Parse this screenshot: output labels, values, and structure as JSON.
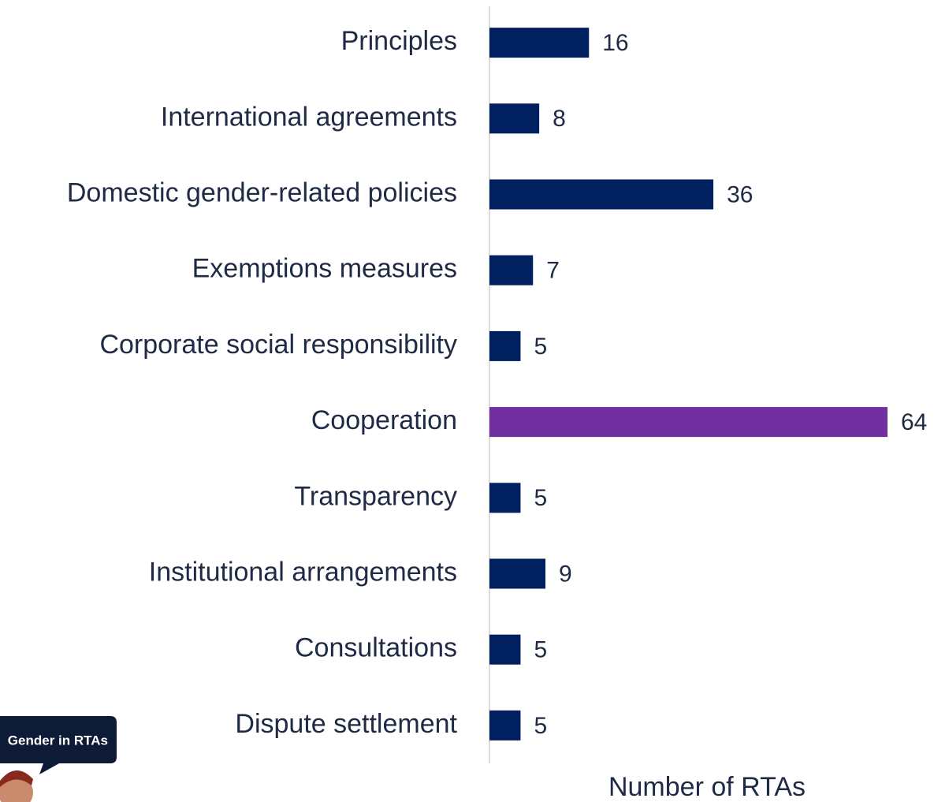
{
  "chart_data": {
    "type": "bar",
    "orientation": "horizontal",
    "categories": [
      "Principles",
      "International agreements",
      "Domestic gender-related policies",
      "Exemptions measures",
      "Corporate social responsibility",
      "Cooperation",
      "Transparency",
      "Institutional arrangements",
      "Consultations",
      "Dispute settlement"
    ],
    "values": [
      16,
      8,
      36,
      7,
      5,
      64,
      5,
      9,
      5,
      5
    ],
    "colors": [
      "#002060",
      "#002060",
      "#002060",
      "#002060",
      "#002060",
      "#7030a0",
      "#002060",
      "#002060",
      "#002060",
      "#002060"
    ],
    "xlabel": "Number of RTAs",
    "xlim": [
      0,
      64
    ],
    "badge": "Gender in RTAs"
  }
}
